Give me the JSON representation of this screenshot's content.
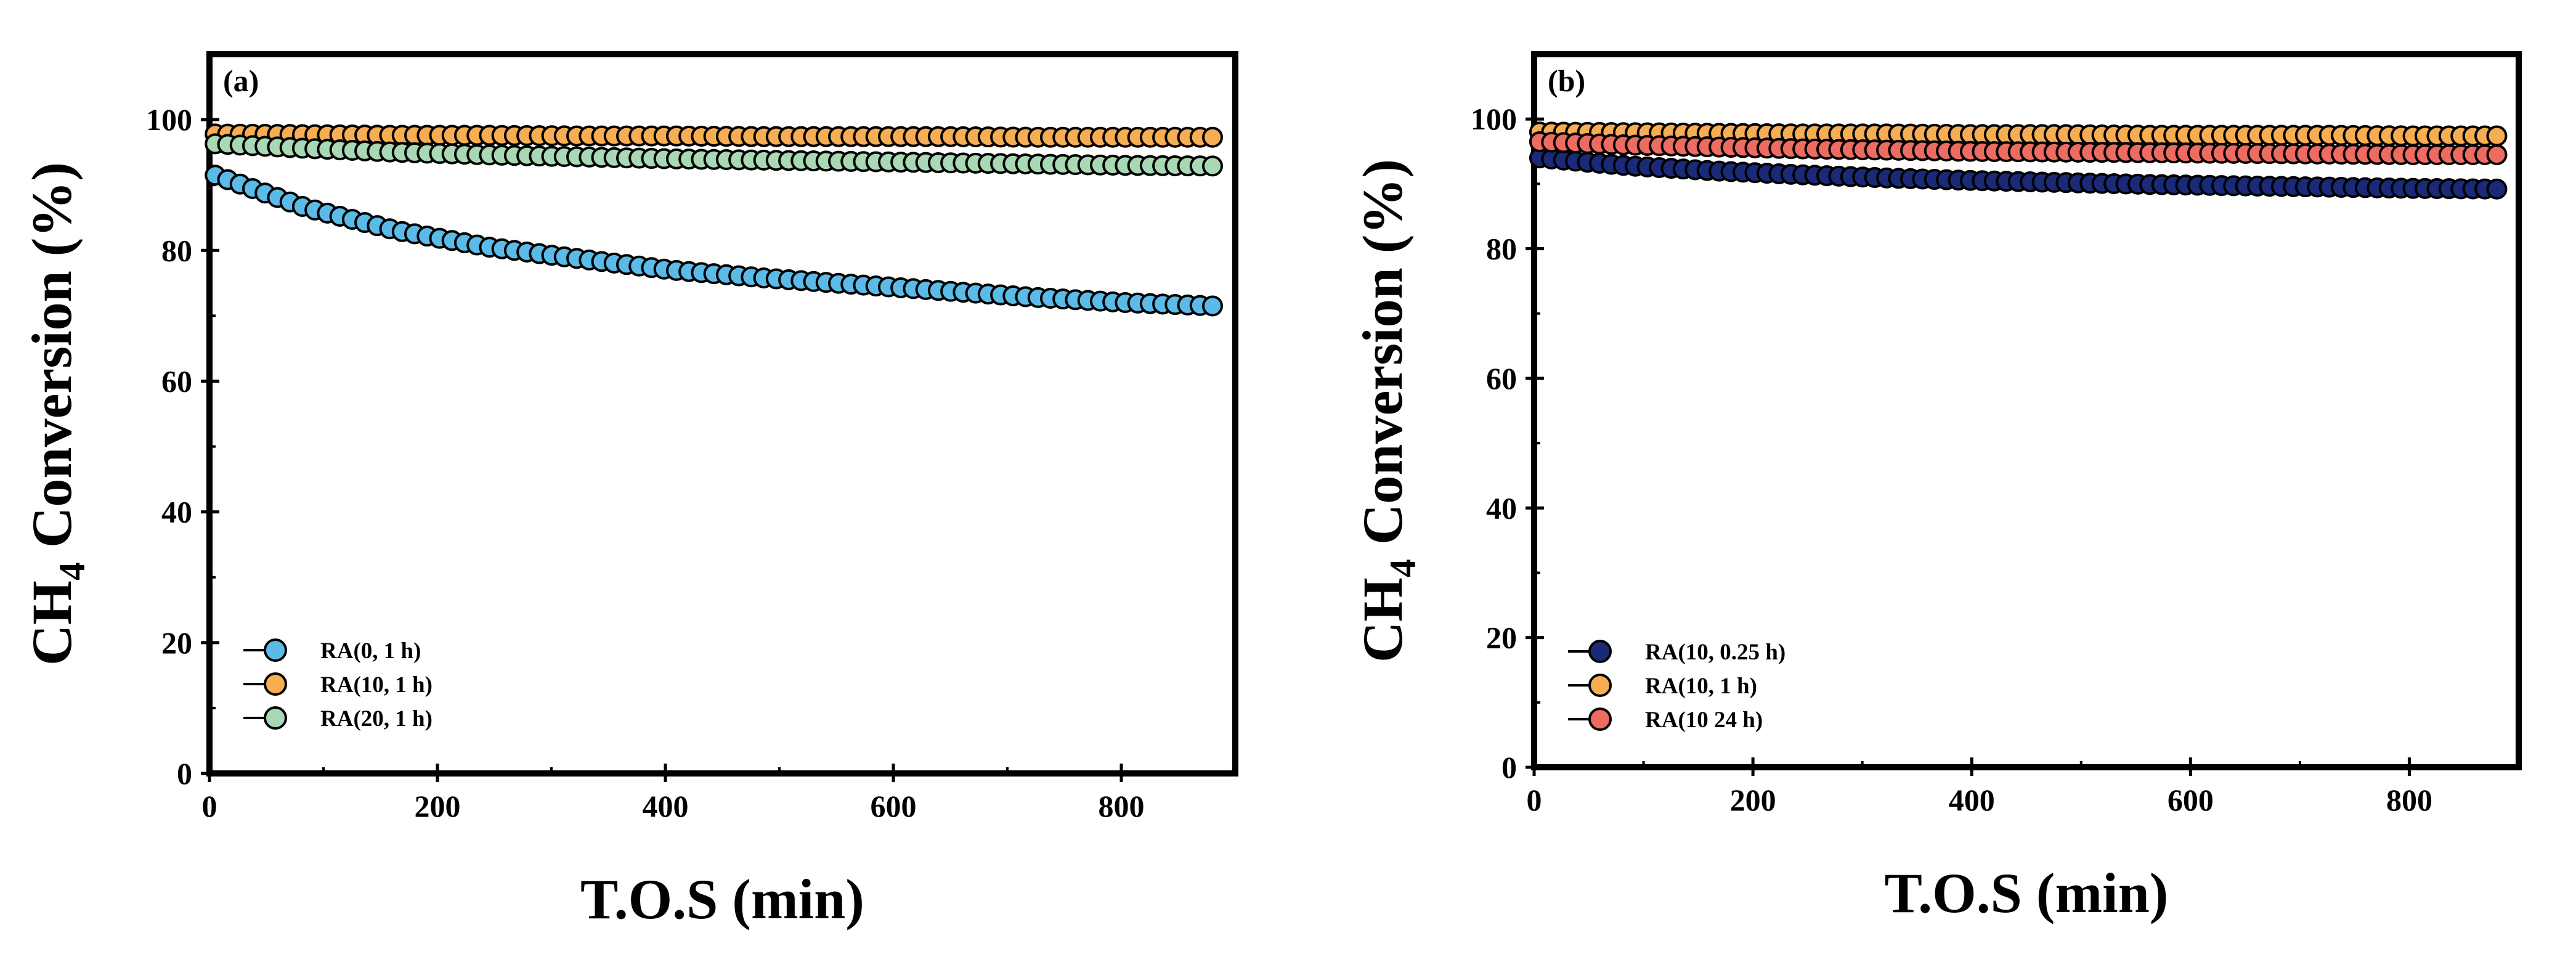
{
  "chart_data": [
    {
      "type": "scatter",
      "panel_label": "(a)",
      "title": "",
      "xlabel": "T.O.S (min)",
      "ylabel_main": "CH",
      "ylabel_sub": "4",
      "ylabel_rest": " Conversion (%)",
      "xlim": [
        0,
        900
      ],
      "ylim": [
        0,
        110
      ],
      "xticks": [
        "0",
        "200",
        "400",
        "600",
        "800"
      ],
      "yticks": [
        "0",
        "20",
        "40",
        "60",
        "80",
        "100"
      ],
      "legend_position": "bottom-left",
      "series": [
        {
          "name": "RA(0, 1 h)",
          "color": "#5bbbe8",
          "x": [
            5,
            85,
            165,
            245,
            325,
            405,
            485,
            565,
            645,
            725,
            805,
            880
          ],
          "y": [
            91.5,
            86.5,
            83.0,
            80.5,
            78.7,
            77.0,
            75.8,
            74.8,
            73.8,
            72.8,
            72.0,
            71.5
          ]
        },
        {
          "name": "RA(10, 1 h)",
          "color": "#f7ad52",
          "x": [
            5,
            85,
            165,
            245,
            325,
            405,
            485,
            565,
            645,
            725,
            805,
            880
          ],
          "y": [
            97.8,
            97.7,
            97.6,
            97.6,
            97.5,
            97.5,
            97.4,
            97.4,
            97.4,
            97.3,
            97.3,
            97.3
          ]
        },
        {
          "name": "RA(20, 1 h)",
          "color": "#a8d8b4",
          "x": [
            5,
            85,
            165,
            245,
            325,
            405,
            485,
            565,
            645,
            725,
            805,
            880
          ],
          "y": [
            96.3,
            95.6,
            95.0,
            94.6,
            94.3,
            94.0,
            93.8,
            93.6,
            93.4,
            93.2,
            93.0,
            92.9
          ]
        }
      ]
    },
    {
      "type": "scatter",
      "panel_label": "(b)",
      "title": "",
      "xlabel": "T.O.S (min)",
      "ylabel_main": "CH",
      "ylabel_sub": "4",
      "ylabel_rest": " Conversion (%)",
      "xlim": [
        0,
        900
      ],
      "ylim": [
        0,
        110
      ],
      "xticks": [
        "0",
        "200",
        "400",
        "600",
        "800"
      ],
      "yticks": [
        "0",
        "20",
        "40",
        "60",
        "80",
        "100"
      ],
      "legend_position": "bottom-left",
      "series": [
        {
          "name": "RA(10, 0.25 h)",
          "color": "#1a2a78",
          "x": [
            5,
            85,
            165,
            245,
            325,
            405,
            485,
            565,
            645,
            725,
            805,
            880
          ],
          "y": [
            94.0,
            92.8,
            92.0,
            91.4,
            90.9,
            90.5,
            90.2,
            89.9,
            89.7,
            89.5,
            89.3,
            89.2
          ]
        },
        {
          "name": "RA(10, 1 h)",
          "color": "#f7ad52",
          "x": [
            5,
            85,
            165,
            245,
            325,
            405,
            485,
            565,
            645,
            725,
            805,
            880
          ],
          "y": [
            98.0,
            97.9,
            97.8,
            97.7,
            97.7,
            97.6,
            97.6,
            97.5,
            97.5,
            97.5,
            97.4,
            97.4
          ]
        },
        {
          "name": "RA(10 24 h)",
          "color": "#ee6b62",
          "x": [
            5,
            85,
            165,
            245,
            325,
            405,
            485,
            565,
            645,
            725,
            805,
            880
          ],
          "y": [
            96.5,
            96.0,
            95.7,
            95.4,
            95.2,
            95.0,
            94.9,
            94.8,
            94.7,
            94.6,
            94.5,
            94.5
          ]
        }
      ]
    }
  ]
}
